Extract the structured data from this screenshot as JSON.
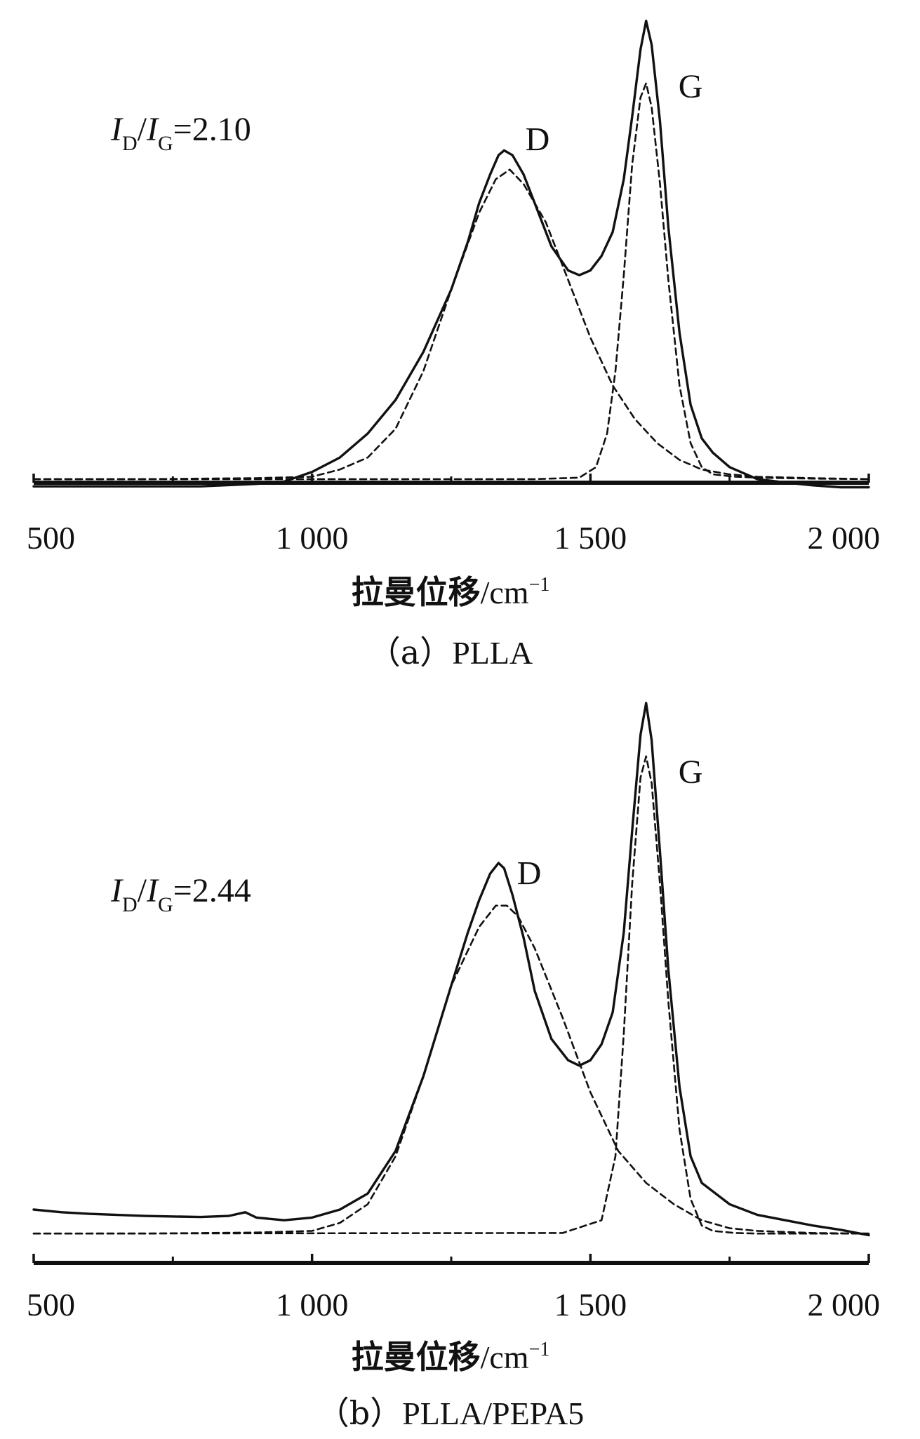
{
  "chart_data": [
    {
      "type": "line",
      "caption": "(a) PLLA",
      "caption_parts": [
        "（a）",
        "PLLA"
      ],
      "xlabel_cn": "拉曼位移",
      "xlabel_unit": "/cm",
      "xlabel_sup": "−1",
      "xlim": [
        500,
        2000
      ],
      "ylim": [
        0,
        1
      ],
      "xticks": [
        500,
        1000,
        1500,
        2000
      ],
      "xtick_labels": [
        "500",
        "1 000",
        "1 500",
        "2 000"
      ],
      "minor_xticks": [
        750,
        1250,
        1750
      ],
      "ratio": {
        "i": "I",
        "d": "D",
        "slash": "/",
        "g": "G",
        "value": "=2.10"
      },
      "peak_labels": [
        {
          "text": "D",
          "x": 1405,
          "y": 0.71
        },
        {
          "text": "G",
          "x": 1680,
          "y": 0.82
        }
      ],
      "series": [
        {
          "name": "measured",
          "style": "solid",
          "x": [
            500,
            600,
            700,
            800,
            900,
            950,
            1000,
            1050,
            1100,
            1150,
            1200,
            1250,
            1280,
            1300,
            1320,
            1335,
            1345,
            1360,
            1380,
            1400,
            1430,
            1460,
            1480,
            1500,
            1520,
            1540,
            1560,
            1575,
            1590,
            1600,
            1610,
            1625,
            1640,
            1660,
            1680,
            1700,
            1720,
            1750,
            1800,
            1850,
            1900,
            1950,
            2000
          ],
          "y": [
            0.01,
            0.01,
            0.01,
            0.01,
            0.015,
            0.02,
            0.04,
            0.07,
            0.12,
            0.19,
            0.29,
            0.42,
            0.52,
            0.6,
            0.66,
            0.7,
            0.71,
            0.7,
            0.66,
            0.6,
            0.51,
            0.46,
            0.45,
            0.46,
            0.49,
            0.54,
            0.65,
            0.78,
            0.92,
            0.98,
            0.93,
            0.77,
            0.55,
            0.33,
            0.18,
            0.11,
            0.08,
            0.05,
            0.025,
            0.018,
            0.012,
            0.008,
            0.008
          ]
        },
        {
          "name": "D fit",
          "style": "dashed",
          "x": [
            500,
            700,
            900,
            1000,
            1050,
            1100,
            1150,
            1200,
            1250,
            1300,
            1330,
            1355,
            1380,
            1420,
            1460,
            1500,
            1540,
            1580,
            1620,
            1660,
            1700,
            1750,
            1800,
            1900,
            2000
          ],
          "y": [
            0.025,
            0.025,
            0.027,
            0.03,
            0.045,
            0.07,
            0.13,
            0.25,
            0.42,
            0.58,
            0.65,
            0.67,
            0.64,
            0.56,
            0.44,
            0.32,
            0.22,
            0.15,
            0.1,
            0.065,
            0.045,
            0.035,
            0.03,
            0.027,
            0.025
          ]
        },
        {
          "name": "G fit",
          "style": "dashed",
          "x": [
            500,
            1400,
            1480,
            1510,
            1530,
            1545,
            1560,
            1575,
            1590,
            1600,
            1610,
            1625,
            1640,
            1660,
            1680,
            1700,
            1720,
            1760,
            1800,
            1900,
            2000
          ],
          "y": [
            0.025,
            0.025,
            0.028,
            0.05,
            0.12,
            0.25,
            0.45,
            0.68,
            0.82,
            0.85,
            0.8,
            0.64,
            0.44,
            0.22,
            0.1,
            0.05,
            0.035,
            0.03,
            0.028,
            0.026,
            0.025
          ]
        }
      ]
    },
    {
      "type": "line",
      "caption": "(b) PLLA/PEPA5",
      "caption_parts": [
        "（b）",
        "PLLA/PEPA5"
      ],
      "xlabel_cn": "拉曼位移",
      "xlabel_unit": "/cm",
      "xlabel_sup": "−1",
      "xlim": [
        500,
        2000
      ],
      "ylim": [
        0,
        1
      ],
      "xticks": [
        500,
        1000,
        1500,
        2000
      ],
      "xtick_labels": [
        "500",
        "1 000",
        "1 500",
        "2 000"
      ],
      "minor_xticks": [
        750,
        1250,
        1750
      ],
      "ratio": {
        "i": "I",
        "d": "D",
        "slash": "/",
        "g": "G",
        "value": "=2.44"
      },
      "peak_labels": [
        {
          "text": "D",
          "x": 1390,
          "y": 0.66
        },
        {
          "text": "G",
          "x": 1680,
          "y": 0.85
        }
      ],
      "series": [
        {
          "name": "measured",
          "style": "solid",
          "x": [
            500,
            550,
            600,
            700,
            800,
            850,
            880,
            900,
            950,
            1000,
            1050,
            1100,
            1150,
            1200,
            1250,
            1280,
            1300,
            1320,
            1335,
            1345,
            1360,
            1380,
            1400,
            1430,
            1460,
            1480,
            1500,
            1520,
            1540,
            1560,
            1575,
            1590,
            1600,
            1610,
            1625,
            1640,
            1660,
            1680,
            1700,
            1750,
            1800,
            1850,
            1900,
            1950,
            2000
          ],
          "y": [
            0.05,
            0.045,
            0.042,
            0.038,
            0.036,
            0.038,
            0.045,
            0.035,
            0.03,
            0.035,
            0.05,
            0.08,
            0.16,
            0.3,
            0.47,
            0.57,
            0.63,
            0.68,
            0.7,
            0.69,
            0.64,
            0.56,
            0.46,
            0.37,
            0.33,
            0.32,
            0.33,
            0.36,
            0.42,
            0.57,
            0.76,
            0.94,
            1.0,
            0.93,
            0.72,
            0.5,
            0.28,
            0.15,
            0.1,
            0.06,
            0.04,
            0.03,
            0.02,
            0.012,
            0.002
          ]
        },
        {
          "name": "D fit",
          "style": "dashed",
          "x": [
            500,
            700,
            900,
            1000,
            1050,
            1100,
            1150,
            1200,
            1250,
            1300,
            1330,
            1350,
            1370,
            1400,
            1450,
            1500,
            1550,
            1600,
            1650,
            1700,
            1750,
            1800,
            1900,
            2000
          ],
          "y": [
            0.005,
            0.005,
            0.007,
            0.01,
            0.025,
            0.06,
            0.15,
            0.3,
            0.47,
            0.58,
            0.62,
            0.62,
            0.6,
            0.54,
            0.41,
            0.27,
            0.16,
            0.1,
            0.06,
            0.03,
            0.015,
            0.01,
            0.006,
            0.005
          ]
        },
        {
          "name": "G fit",
          "style": "dashed",
          "x": [
            500,
            1450,
            1520,
            1545,
            1560,
            1575,
            1590,
            1600,
            1610,
            1625,
            1640,
            1660,
            1680,
            1700,
            1720,
            1760,
            1800,
            1900,
            2000
          ],
          "y": [
            0.005,
            0.006,
            0.03,
            0.15,
            0.38,
            0.66,
            0.86,
            0.9,
            0.85,
            0.66,
            0.44,
            0.2,
            0.07,
            0.02,
            0.01,
            0.006,
            0.005,
            0.005,
            0.005
          ]
        }
      ]
    }
  ]
}
